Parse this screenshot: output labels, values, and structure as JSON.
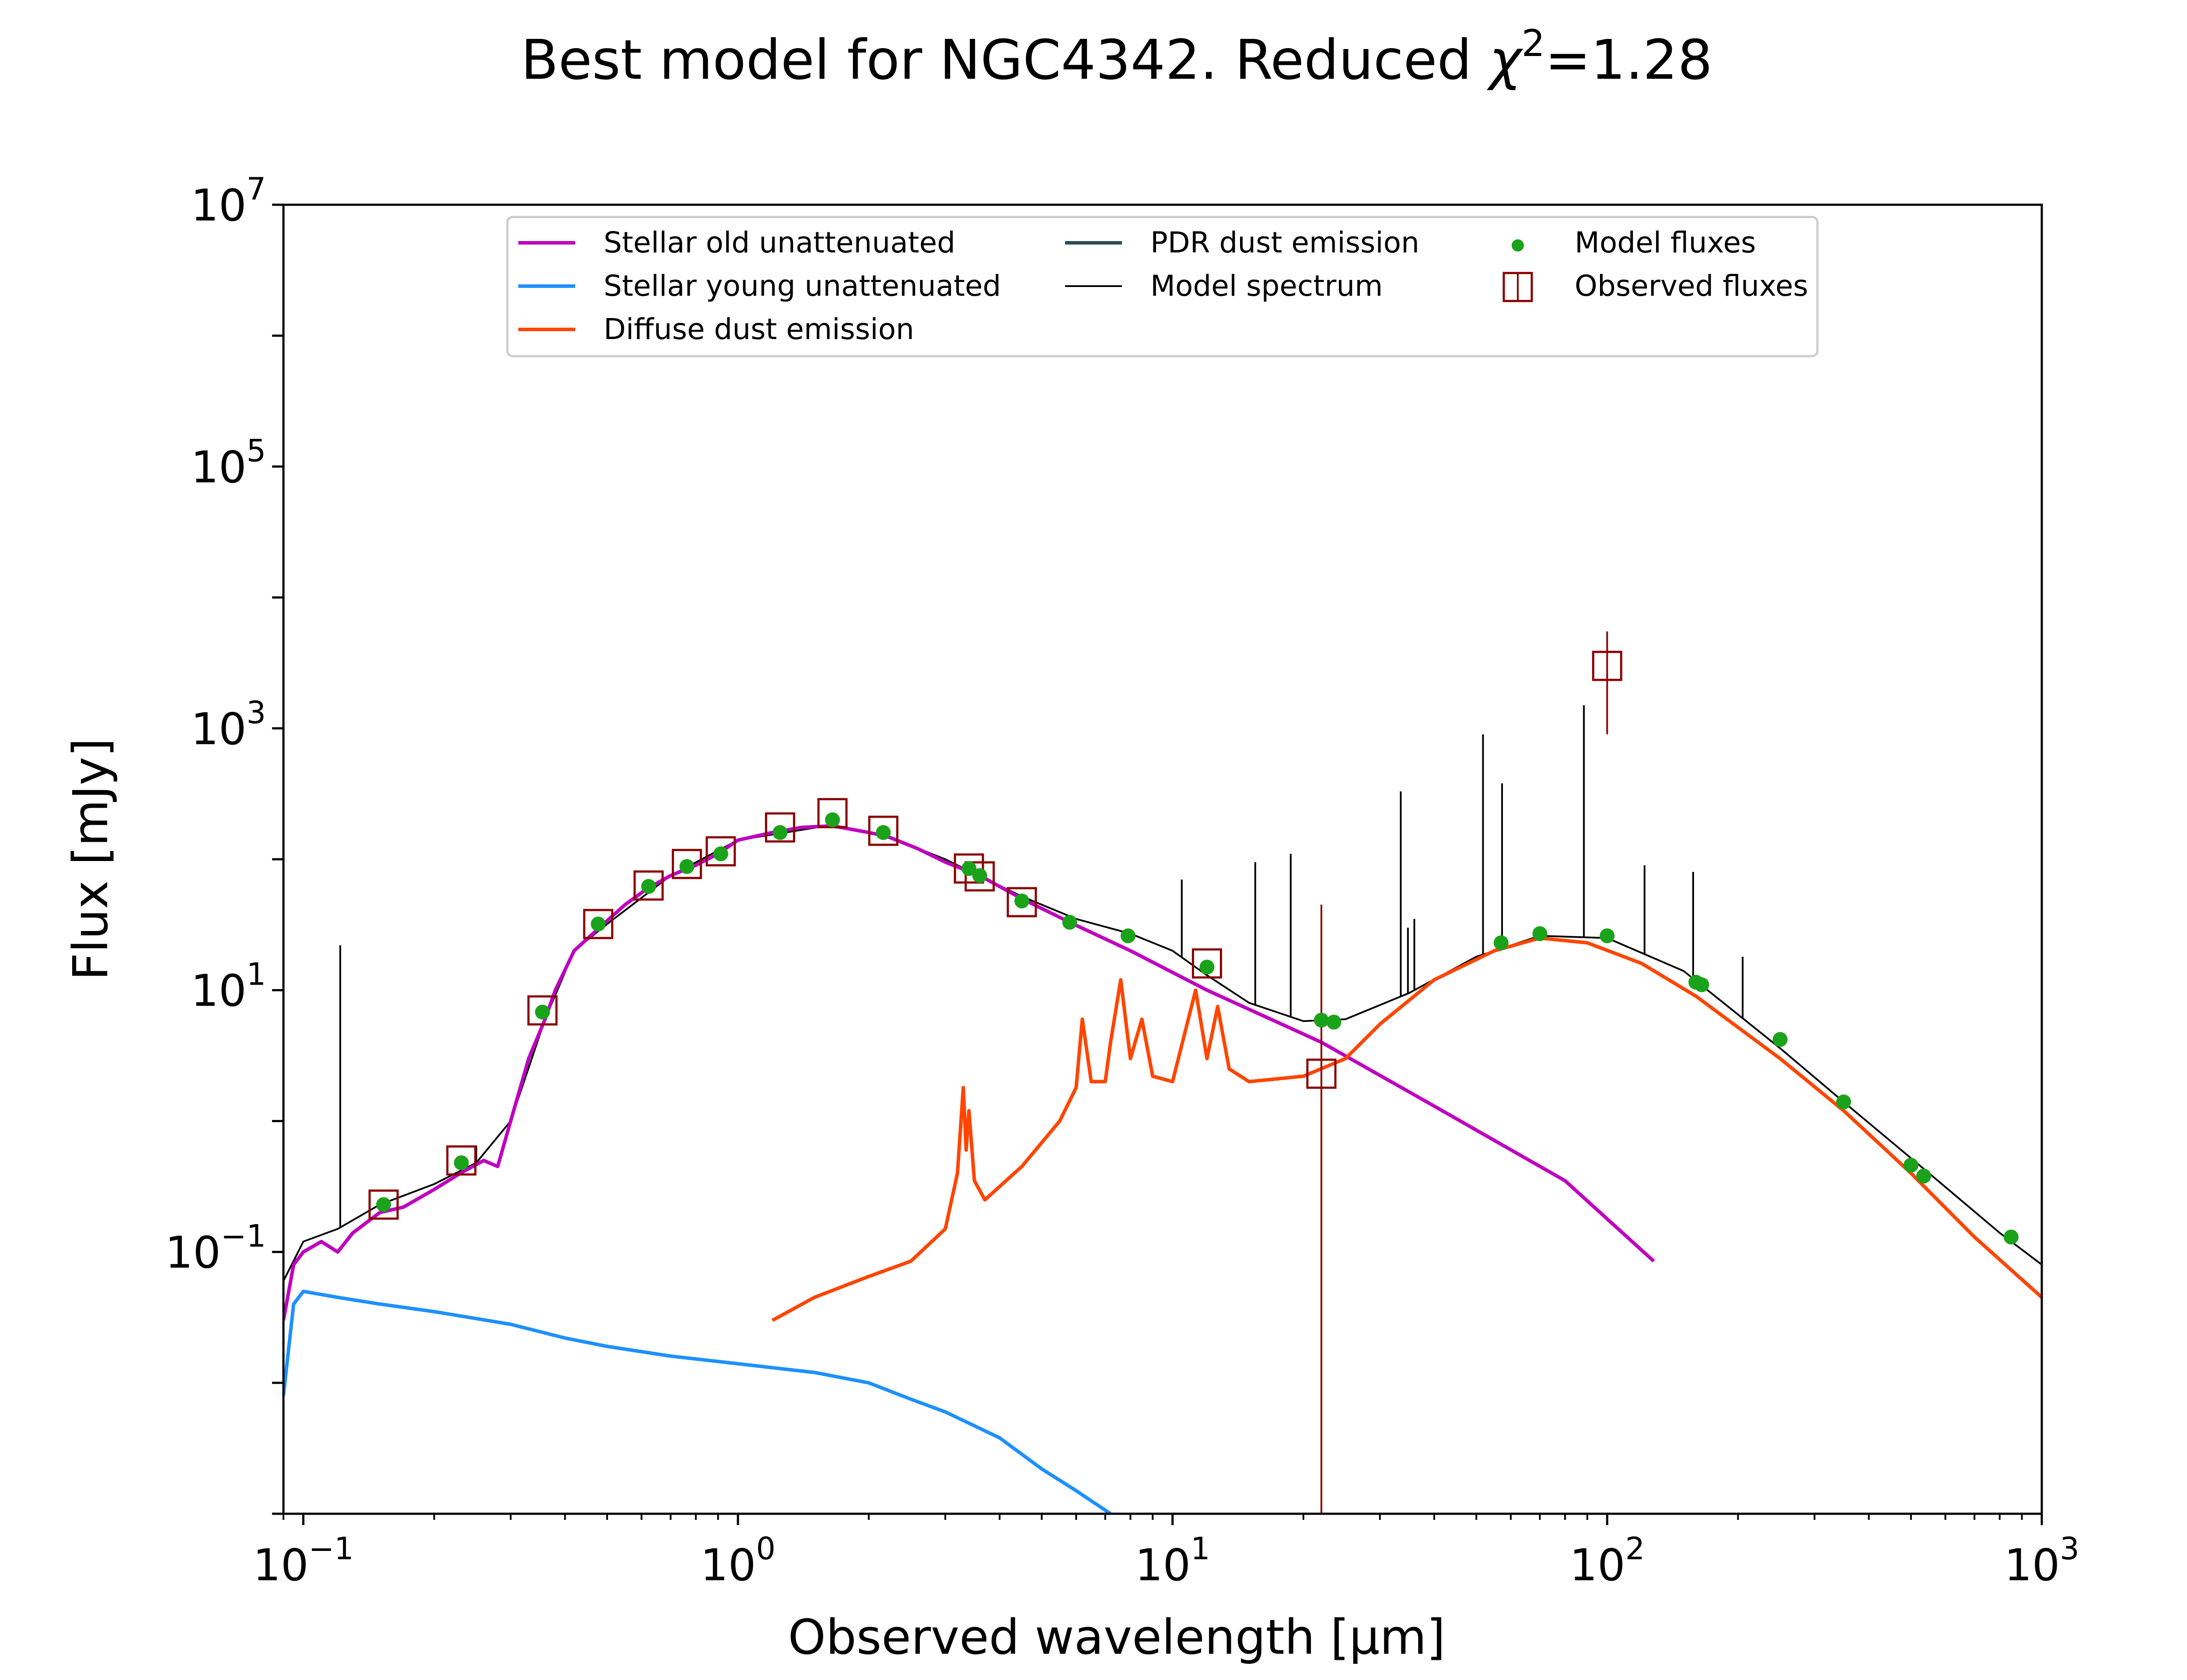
{
  "chart_data": {
    "type": "line",
    "title": "Best model for NGC4342. Reduced χ²=1.28",
    "title_parts": {
      "main": "Best model for NGC4342. Reduced ",
      "symbol": "χ",
      "sup": "2",
      "tail": "=1.28"
    },
    "xlabel": "Observed wavelength [μm]",
    "ylabel": "Flux [mJy]",
    "x_scale": "log",
    "y_scale": "log",
    "xlim": [
      0.09,
      1000
    ],
    "ylim": [
      0.001,
      10000000
    ],
    "x_ticks": [
      {
        "value": 0.1,
        "base": "10",
        "exp": "−1"
      },
      {
        "value": 1,
        "base": "10",
        "exp": "0"
      },
      {
        "value": 10,
        "base": "10",
        "exp": "1"
      },
      {
        "value": 100,
        "base": "10",
        "exp": "2"
      },
      {
        "value": 1000,
        "base": "10",
        "exp": "3"
      }
    ],
    "y_ticks": [
      {
        "value": 0.1,
        "base": "10",
        "exp": "−1"
      },
      {
        "value": 10,
        "base": "10",
        "exp": "1"
      },
      {
        "value": 1000,
        "base": "10",
        "exp": "3"
      },
      {
        "value": 100000,
        "base": "10",
        "exp": "5"
      },
      {
        "value": 10000000,
        "base": "10",
        "exp": "7"
      }
    ],
    "grid": false,
    "legend_position": "top-center",
    "legend": [
      {
        "label": "Stellar old unattenuated",
        "color": "#bf00bf",
        "marker": "line"
      },
      {
        "label": "Stellar young unattenuated",
        "color": "#1e90ff",
        "marker": "line"
      },
      {
        "label": "Diffuse dust emission",
        "color": "#ff4500",
        "marker": "line"
      },
      {
        "label": "PDR dust emission",
        "color": "#2f4f4f",
        "marker": "line"
      },
      {
        "label": "Model spectrum",
        "color": "#000000",
        "marker": "thin-line"
      },
      {
        "label": "Model fluxes",
        "color": "#1aa31a",
        "marker": "dot"
      },
      {
        "label": "Observed fluxes",
        "color": "#8b0000",
        "marker": "square"
      }
    ],
    "series": [
      {
        "name": "Stellar old unattenuated",
        "color": "#bf00bf",
        "points": [
          [
            0.09,
            0.03
          ],
          [
            0.095,
            0.08
          ],
          [
            0.1,
            0.1
          ],
          [
            0.11,
            0.12
          ],
          [
            0.12,
            0.1
          ],
          [
            0.13,
            0.14
          ],
          [
            0.15,
            0.2
          ],
          [
            0.17,
            0.22
          ],
          [
            0.2,
            0.3
          ],
          [
            0.23,
            0.4
          ],
          [
            0.26,
            0.5
          ],
          [
            0.28,
            0.45
          ],
          [
            0.3,
            1.0
          ],
          [
            0.33,
            3.0
          ],
          [
            0.36,
            6.0
          ],
          [
            0.38,
            10.0
          ],
          [
            0.42,
            20.0
          ],
          [
            0.48,
            30.0
          ],
          [
            0.55,
            45.0
          ],
          [
            0.62,
            60.0
          ],
          [
            0.7,
            75.0
          ],
          [
            0.8,
            90.0
          ],
          [
            0.9,
            110.0
          ],
          [
            1.0,
            140.0
          ],
          [
            1.2,
            160.0
          ],
          [
            1.4,
            175.0
          ],
          [
            1.65,
            180.0
          ],
          [
            2.0,
            160.0
          ],
          [
            2.2,
            150.0
          ],
          [
            2.6,
            120.0
          ],
          [
            3.0,
            95.0
          ],
          [
            3.6,
            75.0
          ],
          [
            4.5,
            50.0
          ],
          [
            5.8,
            33.0
          ],
          [
            8.0,
            20.0
          ],
          [
            12.0,
            10.0
          ],
          [
            22.0,
            4.0
          ],
          [
            40.0,
            1.3
          ],
          [
            80.0,
            0.35
          ],
          [
            128.0,
            0.085
          ]
        ]
      },
      {
        "name": "Stellar young unattenuated",
        "color": "#1e90ff",
        "points": [
          [
            0.09,
            0.008
          ],
          [
            0.095,
            0.04
          ],
          [
            0.1,
            0.05
          ],
          [
            0.12,
            0.045
          ],
          [
            0.15,
            0.04
          ],
          [
            0.2,
            0.035
          ],
          [
            0.3,
            0.028
          ],
          [
            0.4,
            0.022
          ],
          [
            0.5,
            0.019
          ],
          [
            0.7,
            0.016
          ],
          [
            1.0,
            0.014
          ],
          [
            1.5,
            0.012
          ],
          [
            2.0,
            0.01
          ],
          [
            2.5,
            0.0075
          ],
          [
            3.0,
            0.006
          ],
          [
            4.0,
            0.0038
          ],
          [
            5.0,
            0.0022
          ],
          [
            6.0,
            0.0015
          ],
          [
            7.2,
            0.001
          ]
        ]
      },
      {
        "name": "Diffuse dust emission",
        "color": "#ff4500",
        "points": [
          [
            1.2,
            0.03
          ],
          [
            1.5,
            0.045
          ],
          [
            2.0,
            0.065
          ],
          [
            2.5,
            0.085
          ],
          [
            3.0,
            0.15
          ],
          [
            3.2,
            0.4
          ],
          [
            3.3,
            1.8
          ],
          [
            3.35,
            0.6
          ],
          [
            3.4,
            1.2
          ],
          [
            3.5,
            0.35
          ],
          [
            3.7,
            0.25
          ],
          [
            4.5,
            0.45
          ],
          [
            5.5,
            1.0
          ],
          [
            6.0,
            1.8
          ],
          [
            6.2,
            6.0
          ],
          [
            6.5,
            2.0
          ],
          [
            7.0,
            2.0
          ],
          [
            7.2,
            4.0
          ],
          [
            7.6,
            12.0
          ],
          [
            8.0,
            3.0
          ],
          [
            8.5,
            6.0
          ],
          [
            9.0,
            2.2
          ],
          [
            10.0,
            2.0
          ],
          [
            11.3,
            10.0
          ],
          [
            12.0,
            3.0
          ],
          [
            12.7,
            7.5
          ],
          [
            13.5,
            2.5
          ],
          [
            15.0,
            2.0
          ],
          [
            20.0,
            2.2
          ],
          [
            25.0,
            3.0
          ],
          [
            30.0,
            5.5
          ],
          [
            40.0,
            12.0
          ],
          [
            55.0,
            20.0
          ],
          [
            70.0,
            25.0
          ],
          [
            90.0,
            23.0
          ],
          [
            120.0,
            16.0
          ],
          [
            160.0,
            9.0
          ],
          [
            250.0,
            3.0
          ],
          [
            350.0,
            1.2
          ],
          [
            500.0,
            0.4
          ],
          [
            700.0,
            0.13
          ],
          [
            1000.0,
            0.045
          ]
        ]
      },
      {
        "name": "Model spectrum",
        "color": "#000000",
        "points": [
          [
            0.09,
            0.06
          ],
          [
            0.1,
            0.12
          ],
          [
            0.12,
            0.15
          ],
          [
            0.15,
            0.23
          ],
          [
            0.2,
            0.33
          ],
          [
            0.25,
            0.48
          ],
          [
            0.3,
            1.0
          ],
          [
            0.36,
            6.0
          ],
          [
            0.42,
            20.0
          ],
          [
            0.5,
            32.0
          ],
          [
            0.7,
            75.0
          ],
          [
            1.0,
            140.0
          ],
          [
            1.6,
            180.0
          ],
          [
            2.2,
            150.0
          ],
          [
            3.0,
            100.0
          ],
          [
            4.5,
            52.0
          ],
          [
            6.0,
            35.0
          ],
          [
            8.0,
            27.0
          ],
          [
            10.0,
            20.0
          ],
          [
            12.0,
            13.0
          ],
          [
            15.0,
            8.0
          ],
          [
            20.0,
            5.8
          ],
          [
            25.0,
            6.0
          ],
          [
            35.0,
            9.5
          ],
          [
            50.0,
            18.0
          ],
          [
            70.0,
            26.0
          ],
          [
            100.0,
            25.0
          ],
          [
            150.0,
            14.0
          ],
          [
            250.0,
            3.6
          ],
          [
            350.0,
            1.4
          ],
          [
            550.0,
            0.4
          ],
          [
            800.0,
            0.14
          ],
          [
            1000.0,
            0.08
          ]
        ]
      }
    ],
    "emission_lines": [
      {
        "x": 0.1216,
        "y_top": 22
      },
      {
        "x": 0.25,
        "y_top": 0.65
      },
      {
        "x": 10.5,
        "y_top": 70
      },
      {
        "x": 15.5,
        "y_top": 95
      },
      {
        "x": 18.7,
        "y_top": 110
      },
      {
        "x": 33.5,
        "y_top": 330
      },
      {
        "x": 34.8,
        "y_top": 30
      },
      {
        "x": 36.0,
        "y_top": 35
      },
      {
        "x": 51.8,
        "y_top": 900
      },
      {
        "x": 57.3,
        "y_top": 380
      },
      {
        "x": 88.4,
        "y_top": 1500
      },
      {
        "x": 121.9,
        "y_top": 90
      },
      {
        "x": 157.7,
        "y_top": 80
      },
      {
        "x": 205.0,
        "y_top": 18
      }
    ],
    "model_fluxes": [
      [
        0.153,
        0.23
      ],
      [
        0.231,
        0.48
      ],
      [
        0.355,
        6.8
      ],
      [
        0.477,
        32
      ],
      [
        0.623,
        62
      ],
      [
        0.763,
        88
      ],
      [
        0.913,
        110
      ],
      [
        1.25,
        160
      ],
      [
        1.65,
        200
      ],
      [
        2.16,
        160
      ],
      [
        3.4,
        85
      ],
      [
        3.6,
        75
      ],
      [
        4.5,
        48
      ],
      [
        5.8,
        33
      ],
      [
        7.9,
        26
      ],
      [
        12.0,
        15
      ],
      [
        22.0,
        5.9
      ],
      [
        23.5,
        5.7
      ],
      [
        57.0,
        23
      ],
      [
        70.0,
        27
      ],
      [
        100.0,
        26
      ],
      [
        160.0,
        11.5
      ],
      [
        165.0,
        11
      ],
      [
        250.0,
        4.2
      ],
      [
        350.0,
        1.4
      ],
      [
        500.0,
        0.46
      ],
      [
        535.0,
        0.38
      ],
      [
        850.0,
        0.13
      ]
    ],
    "observed_fluxes": [
      {
        "x": 0.153,
        "y": 0.23
      },
      {
        "x": 0.231,
        "y": 0.5
      },
      {
        "x": 0.355,
        "y": 7.0
      },
      {
        "x": 0.477,
        "y": 32
      },
      {
        "x": 0.623,
        "y": 63
      },
      {
        "x": 0.763,
        "y": 92
      },
      {
        "x": 0.913,
        "y": 115
      },
      {
        "x": 1.25,
        "y": 175
      },
      {
        "x": 1.65,
        "y": 225
      },
      {
        "x": 2.16,
        "y": 165
      },
      {
        "x": 3.4,
        "y": 85
      },
      {
        "x": 3.6,
        "y": 74
      },
      {
        "x": 4.5,
        "y": 47
      },
      {
        "x": 12.0,
        "y": 16
      },
      {
        "x": 22.0,
        "y": 2.3,
        "err_low": 0.001,
        "err_high": 45
      },
      {
        "x": 100.0,
        "y": 3000,
        "err_low": 900,
        "err_high": 5500
      }
    ]
  }
}
